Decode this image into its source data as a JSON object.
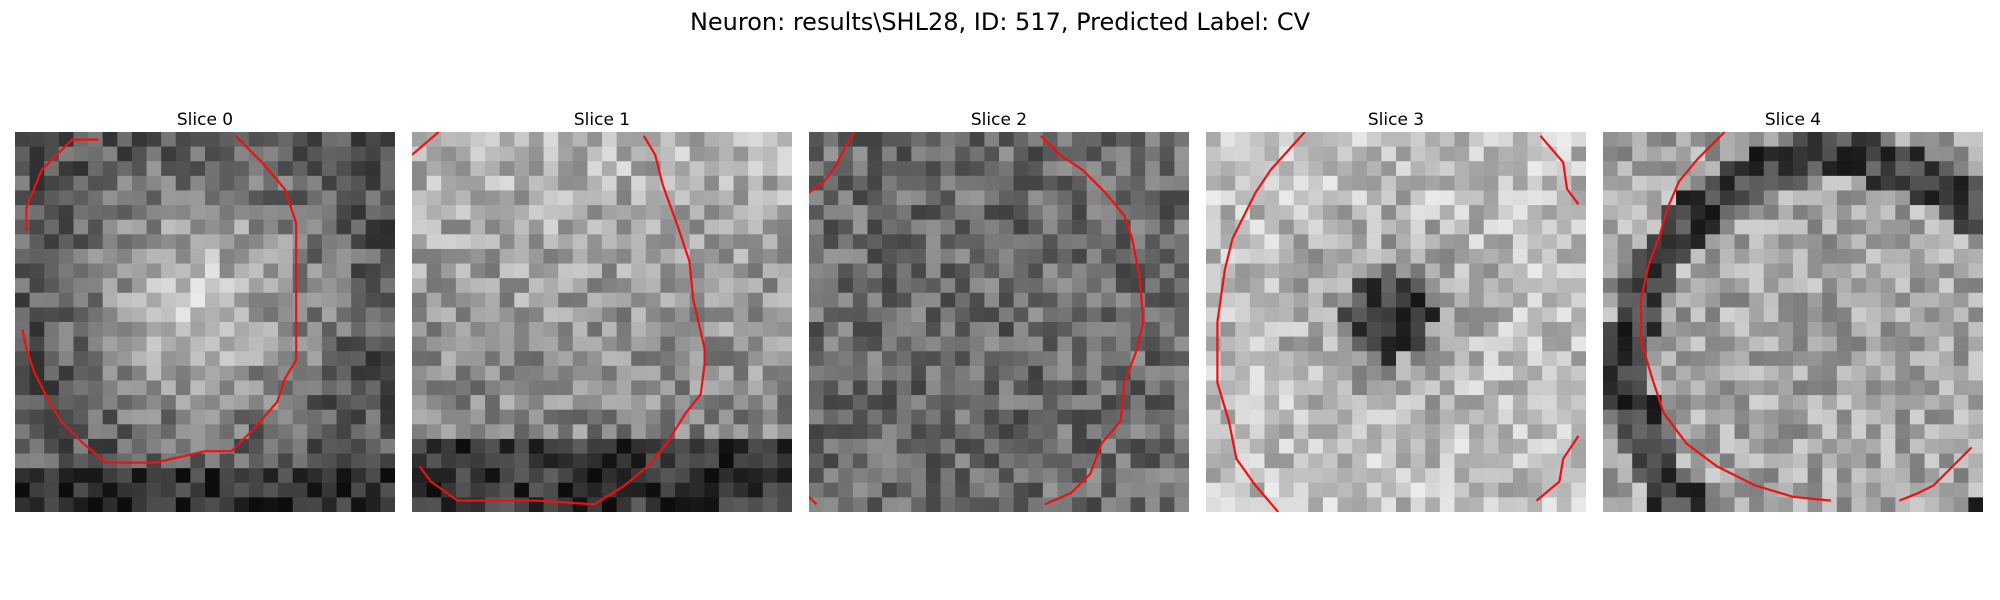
{
  "figure": {
    "title": "Neuron: results\\SHL28, ID: 517, Predicted Label: CV"
  },
  "panels": [
    {
      "title": "Slice 0",
      "seed": 11,
      "pattern": "bright-center",
      "contour": [
        [
          0.22,
          0.02
        ],
        [
          0.15,
          0.02
        ],
        [
          0.12,
          0.05
        ],
        [
          0.07,
          0.1
        ],
        [
          0.05,
          0.15
        ],
        [
          0.03,
          0.2
        ],
        [
          0.03,
          0.26
        ]
      ]
    },
    {
      "title": "Slice 1",
      "seed": 23,
      "pattern": "bright-upper",
      "contour": [
        [
          0.0,
          0.06
        ],
        [
          0.07,
          0.0
        ]
      ]
    },
    {
      "title": "Slice 2",
      "seed": 37,
      "pattern": "dark-noise",
      "contour": [
        [
          0.0,
          0.16
        ],
        [
          0.04,
          0.13
        ],
        [
          0.07,
          0.09
        ],
        [
          0.1,
          0.03
        ],
        [
          0.12,
          0.0
        ]
      ]
    },
    {
      "title": "Slice 3",
      "seed": 51,
      "pattern": "dark-center",
      "contour": [
        [
          0.26,
          0.0
        ],
        [
          0.17,
          0.1
        ],
        [
          0.13,
          0.16
        ],
        [
          0.1,
          0.22
        ],
        [
          0.07,
          0.28
        ],
        [
          0.05,
          0.36
        ],
        [
          0.03,
          0.5
        ],
        [
          0.03,
          0.66
        ],
        [
          0.06,
          0.76
        ],
        [
          0.08,
          0.86
        ],
        [
          0.13,
          0.93
        ],
        [
          0.19,
          1.0
        ]
      ]
    },
    {
      "title": "Slice 4",
      "seed": 67,
      "pattern": "ring-upper-right",
      "contour": [
        [
          0.32,
          0.0
        ],
        [
          0.25,
          0.07
        ],
        [
          0.2,
          0.13
        ],
        [
          0.17,
          0.2
        ],
        [
          0.15,
          0.27
        ],
        [
          0.12,
          0.35
        ],
        [
          0.1,
          0.44
        ],
        [
          0.1,
          0.55
        ],
        [
          0.13,
          0.65
        ],
        [
          0.16,
          0.74
        ],
        [
          0.22,
          0.82
        ],
        [
          0.3,
          0.88
        ],
        [
          0.4,
          0.93
        ],
        [
          0.5,
          0.96
        ],
        [
          0.6,
          0.97
        ]
      ]
    }
  ],
  "extra_contours": [
    [
      [
        0.58,
        0.01
      ],
      [
        0.65,
        0.08
      ],
      [
        0.71,
        0.15
      ],
      [
        0.74,
        0.24
      ],
      [
        0.74,
        0.6
      ],
      [
        0.71,
        0.65
      ],
      [
        0.69,
        0.71
      ],
      [
        0.63,
        0.78
      ],
      [
        0.57,
        0.84
      ],
      [
        0.5,
        0.84
      ],
      [
        0.37,
        0.87
      ],
      [
        0.24,
        0.87
      ],
      [
        0.18,
        0.82
      ],
      [
        0.12,
        0.76
      ],
      [
        0.08,
        0.69
      ],
      [
        0.05,
        0.63
      ],
      [
        0.03,
        0.57
      ],
      [
        0.02,
        0.52
      ]
    ],
    [
      [
        0.61,
        0.01
      ],
      [
        0.64,
        0.06
      ],
      [
        0.66,
        0.14
      ],
      [
        0.7,
        0.25
      ],
      [
        0.73,
        0.34
      ],
      [
        0.74,
        0.44
      ],
      [
        0.77,
        0.57
      ],
      [
        0.77,
        0.61
      ],
      [
        0.76,
        0.69
      ],
      [
        0.72,
        0.74
      ],
      [
        0.67,
        0.82
      ],
      [
        0.62,
        0.88
      ],
      [
        0.56,
        0.93
      ],
      [
        0.48,
        0.98
      ],
      [
        0.33,
        0.97
      ],
      [
        0.12,
        0.97
      ],
      [
        0.05,
        0.92
      ],
      [
        0.02,
        0.88
      ]
    ],
    [
      [
        0.61,
        0.01
      ],
      [
        0.66,
        0.06
      ],
      [
        0.72,
        0.1
      ],
      [
        0.78,
        0.16
      ],
      [
        0.83,
        0.22
      ],
      [
        0.85,
        0.28
      ],
      [
        0.87,
        0.38
      ],
      [
        0.88,
        0.5
      ],
      [
        0.86,
        0.58
      ],
      [
        0.83,
        0.66
      ],
      [
        0.82,
        0.76
      ],
      [
        0.77,
        0.82
      ],
      [
        0.74,
        0.9
      ],
      [
        0.69,
        0.95
      ],
      [
        0.62,
        0.98
      ]
    ],
    [
      [
        0.88,
        0.01
      ],
      [
        0.94,
        0.08
      ],
      [
        0.95,
        0.15
      ],
      [
        0.98,
        0.19
      ]
    ],
    [
      [
        0.98,
        0.8
      ],
      [
        0.94,
        0.86
      ],
      [
        0.93,
        0.92
      ],
      [
        0.87,
        0.97
      ]
    ],
    [
      [
        0.78,
        0.97
      ],
      [
        0.83,
        0.95
      ],
      [
        0.87,
        0.93
      ],
      [
        0.92,
        0.88
      ],
      [
        0.97,
        0.83
      ]
    ],
    [
      [
        0.0,
        0.96
      ],
      [
        0.02,
        0.98
      ]
    ]
  ],
  "extra_contour_panel": [
    0,
    1,
    2,
    3,
    3,
    4,
    2
  ],
  "colors": {
    "contour": "#ee1111",
    "suptitle": "#000000"
  }
}
